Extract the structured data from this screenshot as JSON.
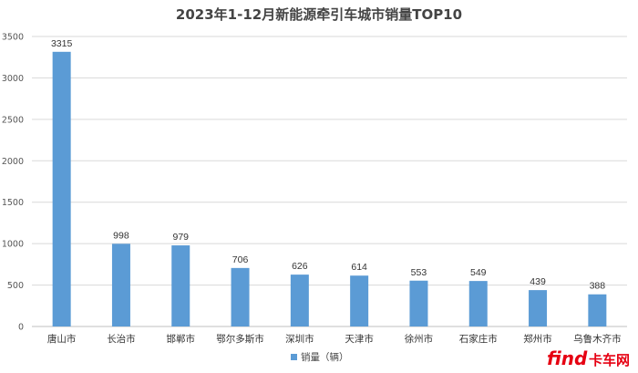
{
  "chart_data": {
    "type": "bar",
    "title": "2023年1-12月新能源牵引车城市销量TOP10",
    "categories": [
      "唐山市",
      "长治市",
      "邯郸市",
      "鄂尔多斯市",
      "深圳市",
      "天津市",
      "徐州市",
      "石家庄市",
      "郑州市",
      "乌鲁木齐市"
    ],
    "series": [
      {
        "name": "销量（辆）",
        "values": [
          3315,
          998,
          979,
          706,
          626,
          614,
          553,
          549,
          439,
          388
        ]
      }
    ],
    "ylim": [
      0,
      3500
    ],
    "yticks": [
      "0",
      "500",
      "1000",
      "1500",
      "2000",
      "2500",
      "3000",
      "3500"
    ],
    "grid": true,
    "legend_position": "bottom",
    "colors": {
      "bar": "#5b9bd5",
      "grid": "#d9d9d9"
    }
  },
  "watermark": {
    "brand": "find",
    "cn": "卡车网"
  }
}
